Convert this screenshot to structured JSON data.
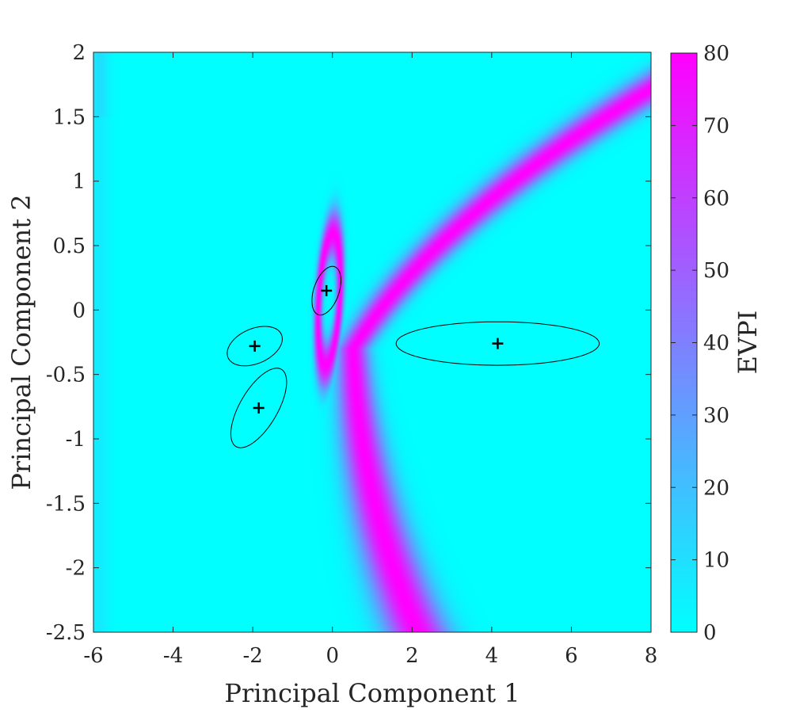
{
  "chart_data": {
    "type": "heatmap",
    "title": "",
    "xlabel": "Principal Component 1",
    "ylabel": "Principal Component 2",
    "colorbar_label": "EVPI",
    "xlim": [
      -6,
      8
    ],
    "ylim": [
      -2.5,
      2
    ],
    "clim": [
      0,
      80
    ],
    "xticks": [
      "-6",
      "-4",
      "-2",
      "0",
      "2",
      "4",
      "6",
      "8"
    ],
    "yticks": [
      "-2.5",
      "-2",
      "-1.5",
      "-1",
      "-0.5",
      "0",
      "0.5",
      "1",
      "1.5",
      "2"
    ],
    "colorbar_ticks": [
      "0",
      "10",
      "20",
      "30",
      "40",
      "50",
      "60",
      "70",
      "80"
    ],
    "colormap": {
      "low": "#00ffff",
      "high": "#ff00ff"
    },
    "grid": false,
    "clusters": [
      {
        "center": [
          -1.95,
          -0.28
        ],
        "semi_axes": [
          0.9,
          0.6
        ],
        "angle_deg": 35
      },
      {
        "center": [
          -1.85,
          -0.76
        ],
        "semi_axes": [
          1.55,
          0.58
        ],
        "angle_deg": 66
      },
      {
        "center": [
          -0.15,
          0.15
        ],
        "semi_axes": [
          0.9,
          0.38
        ],
        "angle_deg": 76
      },
      {
        "center": [
          4.15,
          -0.26
        ],
        "semi_axes": [
          3.0,
          0.785
        ],
        "angle_deg": 0
      }
    ]
  }
}
